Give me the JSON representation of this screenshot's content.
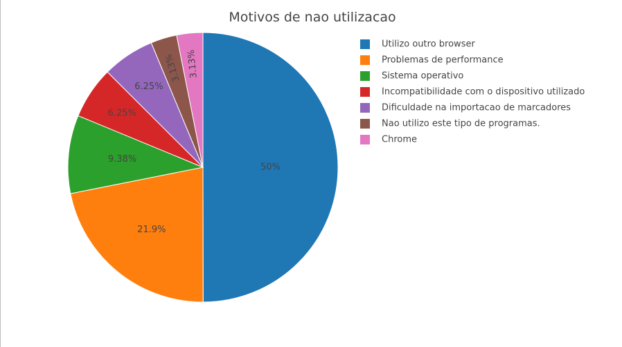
{
  "chart_data": {
    "type": "pie",
    "title": "Motivos de nao utilizacao",
    "slices": [
      {
        "label": "Utilizo outro browser",
        "value": 50,
        "text": "50%",
        "color": "#1f77b4"
      },
      {
        "label": "Problemas de performance",
        "value": 21.9,
        "text": "21.9%",
        "color": "#ff7f0e"
      },
      {
        "label": "Sistema operativo",
        "value": 9.38,
        "text": "9.38%",
        "color": "#2ca02c"
      },
      {
        "label": "Incompatibilidade com o dispositivo utilizado",
        "value": 6.25,
        "text": "6.25%",
        "color": "#d62728"
      },
      {
        "label": "Dificuldade na importacao de marcadores",
        "value": 6.25,
        "text": "6.25%",
        "color": "#9467bd"
      },
      {
        "label": "Nao utilizo este tipo de programas.",
        "value": 3.13,
        "text": "3.13%",
        "color": "#8c564b"
      },
      {
        "label": "Chrome",
        "value": 3.13,
        "text": "3.13%",
        "color": "#e377c2"
      }
    ],
    "legend": "right",
    "direction": "clockwise"
  }
}
